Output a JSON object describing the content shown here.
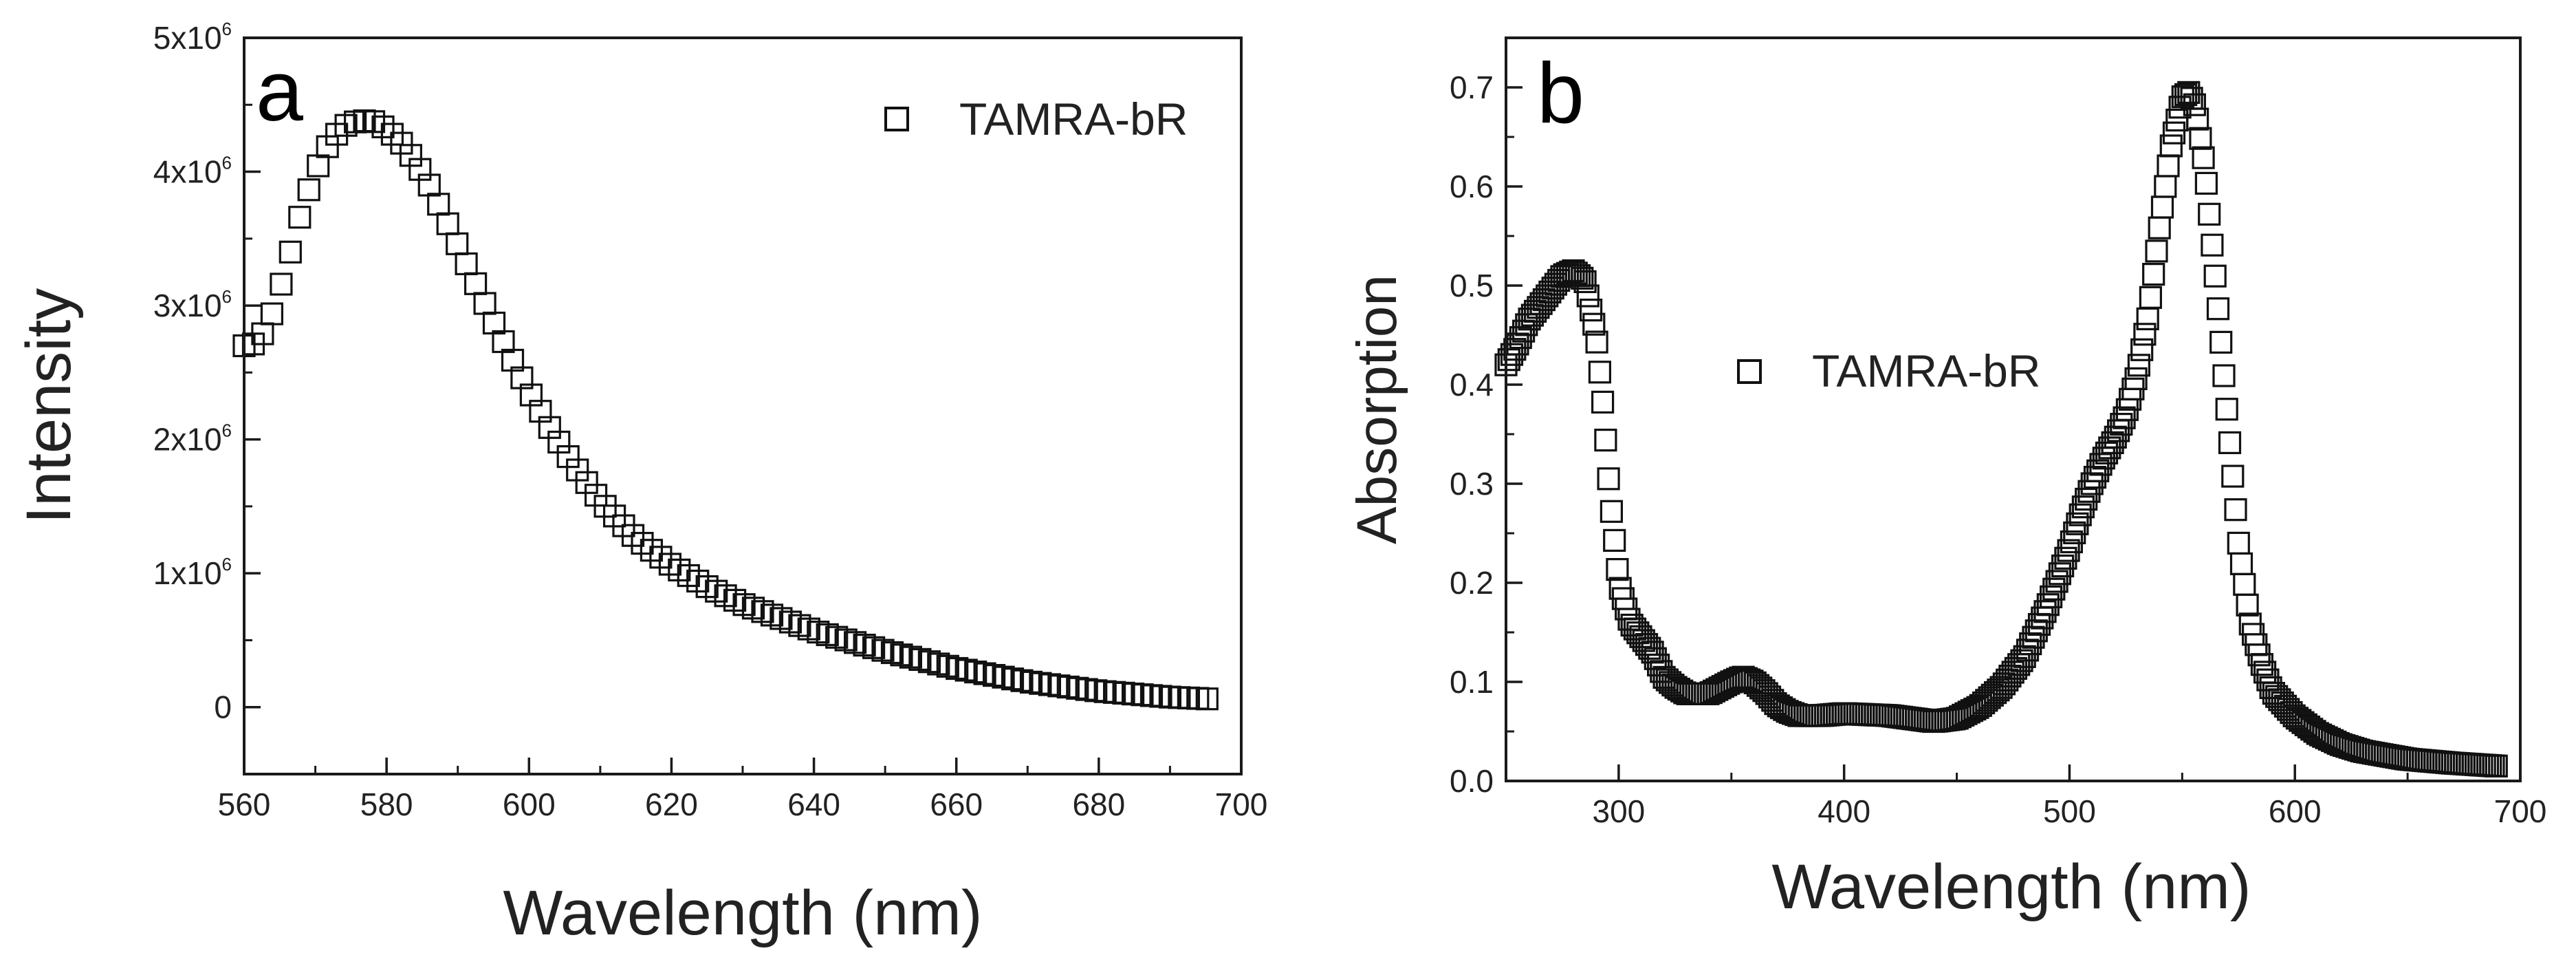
{
  "chart_data": [
    {
      "type": "scatter",
      "panel_label": "a",
      "xlabel": "Wavelength (nm)",
      "ylabel": "Intensity",
      "xlim": [
        560,
        700
      ],
      "ylim": [
        -500000,
        5000000
      ],
      "xticks": [
        560,
        580,
        600,
        620,
        640,
        660,
        680,
        700
      ],
      "xtick_labels": [
        "560",
        "580",
        "600",
        "620",
        "640",
        "660",
        "680",
        "700"
      ],
      "yticks": [
        0,
        1000000,
        2000000,
        3000000,
        4000000,
        5000000
      ],
      "ytick_labels": [
        {
          "mant": "0",
          "exp": ""
        },
        {
          "mant": "1x10",
          "exp": "6"
        },
        {
          "mant": "2x10",
          "exp": "6"
        },
        {
          "mant": "3x10",
          "exp": "6"
        },
        {
          "mant": "4x10",
          "exp": "6"
        },
        {
          "mant": "5x10",
          "exp": "6"
        }
      ],
      "legend": {
        "label": "TAMRA-bR",
        "position": "top-right"
      },
      "marker": "open-square",
      "anchors": [
        [
          560,
          2700000
        ],
        [
          562,
          2720000
        ],
        [
          564,
          2950000
        ],
        [
          566,
          3300000
        ],
        [
          568,
          3700000
        ],
        [
          570,
          4000000
        ],
        [
          572,
          4220000
        ],
        [
          574,
          4340000
        ],
        [
          576,
          4380000
        ],
        [
          578,
          4380000
        ],
        [
          580,
          4320000
        ],
        [
          582,
          4220000
        ],
        [
          584,
          4080000
        ],
        [
          586,
          3900000
        ],
        [
          588,
          3680000
        ],
        [
          590,
          3450000
        ],
        [
          592,
          3220000
        ],
        [
          595,
          2880000
        ],
        [
          598,
          2560000
        ],
        [
          600,
          2360000
        ],
        [
          603,
          2080000
        ],
        [
          606,
          1830000
        ],
        [
          610,
          1540000
        ],
        [
          615,
          1260000
        ],
        [
          620,
          1060000
        ],
        [
          625,
          900000
        ],
        [
          630,
          770000
        ],
        [
          640,
          570000
        ],
        [
          650,
          420000
        ],
        [
          660,
          290000
        ],
        [
          670,
          190000
        ],
        [
          680,
          120000
        ],
        [
          690,
          75000
        ],
        [
          696,
          60000
        ]
      ],
      "x_start": 560,
      "x_end": 696,
      "x_step": 1.3
    },
    {
      "type": "scatter",
      "panel_label": "b",
      "xlabel": "Wavelength (nm)",
      "ylabel": "Absorption",
      "xlim": [
        250,
        700
      ],
      "ylim": [
        0.0,
        0.75
      ],
      "xticks": [
        300,
        400,
        500,
        600,
        700
      ],
      "xtick_labels": [
        "300",
        "400",
        "500",
        "600",
        "700"
      ],
      "yticks": [
        0.0,
        0.1,
        0.2,
        0.3,
        0.4,
        0.5,
        0.6,
        0.7
      ],
      "ytick_labels": [
        "0.0",
        "0.1",
        "0.2",
        "0.3",
        "0.4",
        "0.5",
        "0.6",
        "0.7"
      ],
      "legend": {
        "label": "TAMRA-bR",
        "position": "center"
      },
      "marker": "open-square",
      "anchors": [
        [
          250,
          0.42
        ],
        [
          255,
          0.44
        ],
        [
          260,
          0.465
        ],
        [
          265,
          0.48
        ],
        [
          270,
          0.495
        ],
        [
          275,
          0.51
        ],
        [
          280,
          0.515
        ],
        [
          285,
          0.505
        ],
        [
          290,
          0.45
        ],
        [
          293,
          0.38
        ],
        [
          296,
          0.29
        ],
        [
          300,
          0.2
        ],
        [
          305,
          0.16
        ],
        [
          310,
          0.145
        ],
        [
          315,
          0.13
        ],
        [
          320,
          0.105
        ],
        [
          325,
          0.095
        ],
        [
          330,
          0.088
        ],
        [
          340,
          0.088
        ],
        [
          350,
          0.1
        ],
        [
          355,
          0.105
        ],
        [
          360,
          0.1
        ],
        [
          365,
          0.09
        ],
        [
          370,
          0.077
        ],
        [
          375,
          0.07
        ],
        [
          380,
          0.066
        ],
        [
          390,
          0.066
        ],
        [
          400,
          0.068
        ],
        [
          420,
          0.066
        ],
        [
          440,
          0.06
        ],
        [
          450,
          0.063
        ],
        [
          460,
          0.075
        ],
        [
          470,
          0.095
        ],
        [
          480,
          0.125
        ],
        [
          490,
          0.175
        ],
        [
          500,
          0.235
        ],
        [
          505,
          0.27
        ],
        [
          510,
          0.3
        ],
        [
          515,
          0.325
        ],
        [
          520,
          0.345
        ],
        [
          525,
          0.37
        ],
        [
          530,
          0.41
        ],
        [
          535,
          0.47
        ],
        [
          540,
          0.56
        ],
        [
          545,
          0.64
        ],
        [
          550,
          0.69
        ],
        [
          553,
          0.695
        ],
        [
          556,
          0.68
        ],
        [
          560,
          0.62
        ],
        [
          565,
          0.5
        ],
        [
          570,
          0.37
        ],
        [
          575,
          0.24
        ],
        [
          580,
          0.16
        ],
        [
          585,
          0.12
        ],
        [
          590,
          0.09
        ],
        [
          600,
          0.065
        ],
        [
          610,
          0.048
        ],
        [
          620,
          0.037
        ],
        [
          630,
          0.03
        ],
        [
          650,
          0.022
        ],
        [
          670,
          0.018
        ],
        [
          690,
          0.015
        ]
      ],
      "x_start": 250,
      "x_end": 690,
      "x_step": 1.3
    }
  ]
}
